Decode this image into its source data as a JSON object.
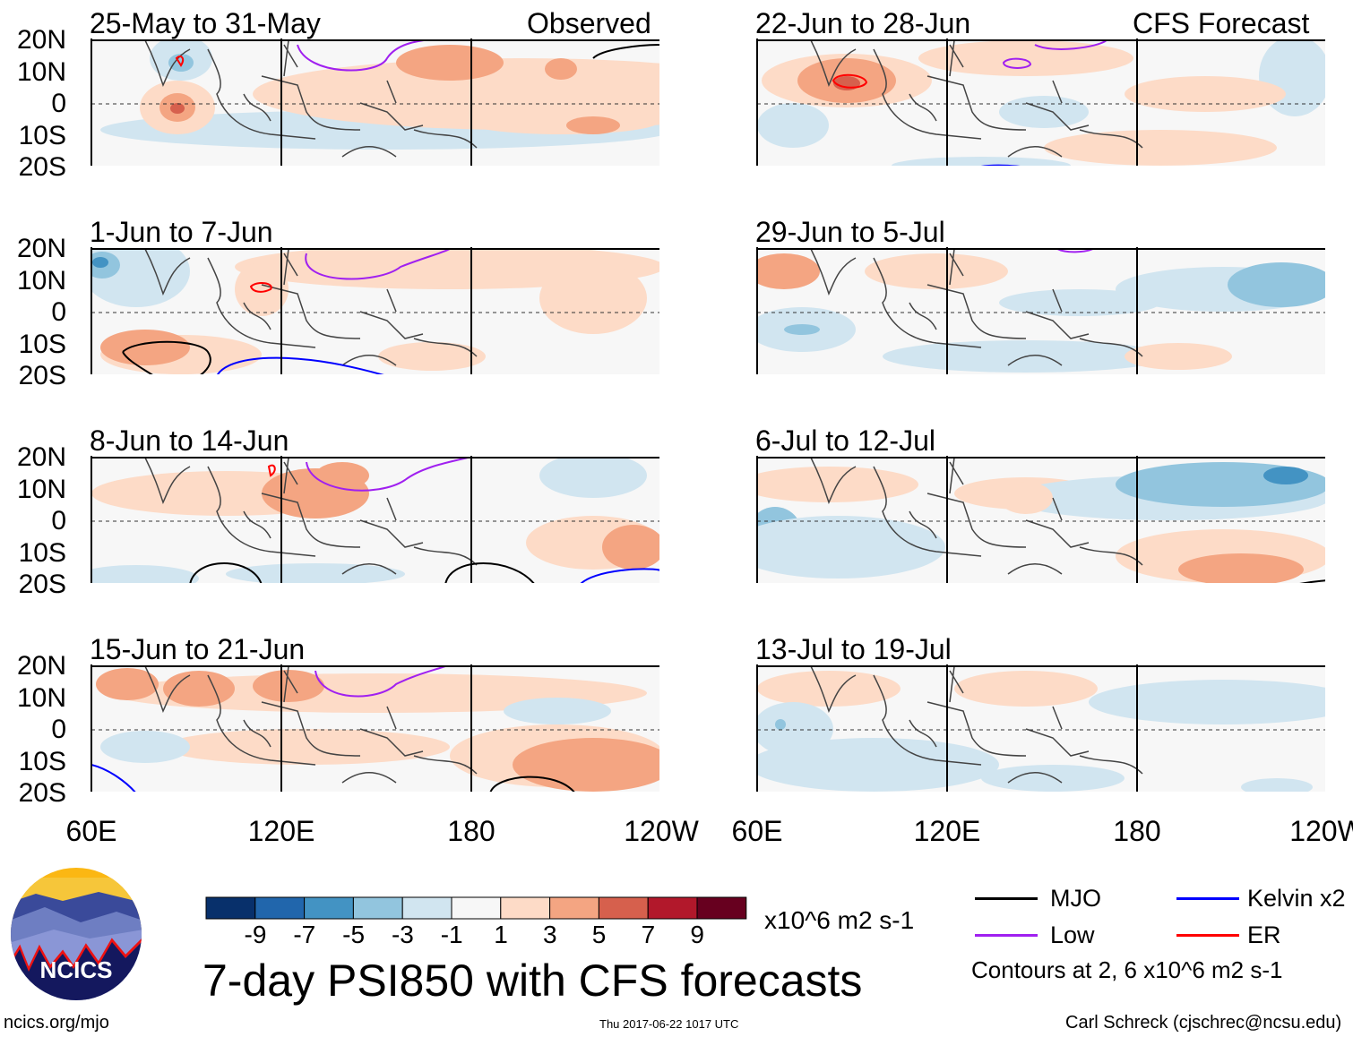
{
  "header": {
    "left_label": "Observed",
    "right_label": "CFS Forecast"
  },
  "panels": {
    "observed": [
      "25-May to 31-May",
      "1-Jun to 7-Jun",
      "8-Jun to 14-Jun",
      "15-Jun to 21-Jun"
    ],
    "forecast": [
      "22-Jun to 28-Jun",
      "29-Jun to 5-Jul",
      "6-Jul to 12-Jul",
      "13-Jul to 19-Jul"
    ]
  },
  "axes": {
    "lat_labels": [
      "20N",
      "10N",
      "0",
      "10S",
      "20S"
    ],
    "lon_labels": [
      "60E",
      "120E",
      "180",
      "120W"
    ]
  },
  "colorbar": {
    "labels": [
      "-9",
      "-7",
      "-5",
      "-3",
      "-1",
      "1",
      "3",
      "5",
      "7",
      "9"
    ],
    "unit": "x10^6 m2 s-1",
    "colors": [
      "#08306b",
      "#2166ac",
      "#4393c3",
      "#92c5de",
      "#d1e5f0",
      "#f7f7f7",
      "#fddbc7",
      "#f4a582",
      "#d6604d",
      "#b2182b",
      "#67001f"
    ]
  },
  "legend": {
    "mjo": "MJO",
    "kelvin": "Kelvin x2",
    "low": "Low",
    "er": "ER",
    "contours": "Contours at 2, 6 x10^6 m2 s-1",
    "colors": {
      "mjo": "#000000",
      "kelvin": "#0000ff",
      "low": "#a020f0",
      "er": "#ff0000"
    }
  },
  "title": "7-day PSI850 with CFS forecasts",
  "logo": {
    "text": "NCICS"
  },
  "footer": {
    "url": "ncics.org/mjo",
    "timestamp": "Thu 2017-06-22 1017 UTC",
    "author": "Carl Schreck (cjschrec@ncsu.edu)"
  }
}
